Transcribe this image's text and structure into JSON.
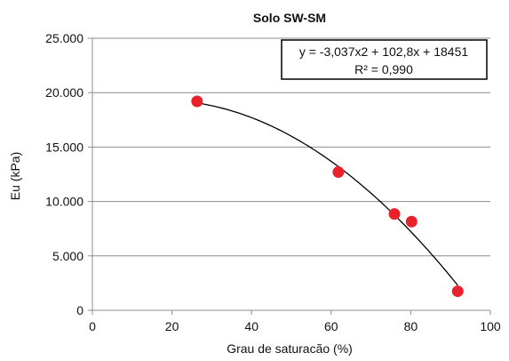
{
  "chart_data": {
    "type": "scatter",
    "title": "Solo SW-SM",
    "xlabel": "Grau de saturacão (%)",
    "ylabel": "Eu (kPa)",
    "xlim": [
      0,
      100
    ],
    "ylim": [
      0,
      25000
    ],
    "xticks": [
      0,
      20,
      40,
      60,
      80,
      100
    ],
    "xtick_labels": [
      "0",
      "20",
      "40",
      "60",
      "80",
      "100"
    ],
    "yticks": [
      0,
      5000,
      10000,
      15000,
      20000,
      25000
    ],
    "ytick_labels": [
      "0",
      "5.000",
      "10.000",
      "15.000",
      "20.000",
      "25.000"
    ],
    "grid": "horizontal",
    "series": [
      {
        "x": [
          26.3,
          61.8,
          75.9,
          80.2,
          91.8
        ],
        "y": [
          19200,
          12700,
          8850,
          8150,
          1750
        ],
        "marker_color": "#e8212b"
      }
    ],
    "trendline": {
      "type": "polynomial",
      "coefficients": [
        -3.037,
        102.8,
        18451
      ],
      "x_range": [
        26.3,
        91.8
      ],
      "color": "#000000"
    },
    "annotation": {
      "equation": "y = -3,037x2 + 102,8x + 18451",
      "r_squared": "R² = 0,990"
    }
  }
}
